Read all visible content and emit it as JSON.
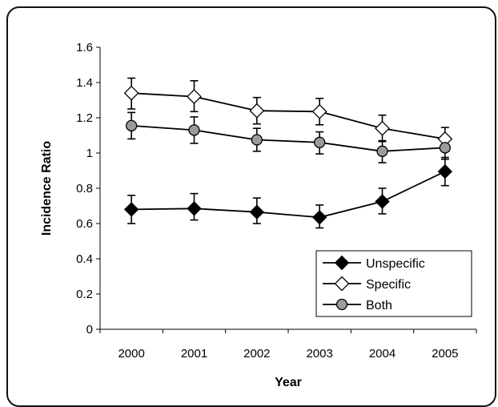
{
  "chart_data": {
    "type": "line",
    "title": "",
    "xlabel": "Year",
    "ylabel": "Incidence Ratio",
    "categories": [
      "2000",
      "2001",
      "2002",
      "2003",
      "2004",
      "2005"
    ],
    "ylim": [
      0,
      1.6
    ],
    "yticks": [
      "0",
      "0.2",
      "0.4",
      "0.6",
      "0.8",
      "1",
      "1.2",
      "1.4",
      "1.6"
    ],
    "grid": false,
    "legend_position": "bottom-right",
    "series": [
      {
        "name": "Unspecific",
        "marker": "filled-diamond",
        "color": "#000000",
        "values": [
          0.68,
          0.685,
          0.665,
          0.635,
          0.725,
          0.895
        ],
        "err_low": [
          0.6,
          0.62,
          0.6,
          0.575,
          0.655,
          0.815
        ],
        "err_high": [
          0.76,
          0.77,
          0.745,
          0.705,
          0.8,
          0.975
        ]
      },
      {
        "name": "Specific",
        "marker": "open-diamond",
        "color": "#000000",
        "values": [
          1.34,
          1.32,
          1.24,
          1.235,
          1.14,
          1.08
        ],
        "err_low": [
          1.25,
          1.235,
          1.165,
          1.16,
          1.065,
          1.01
        ],
        "err_high": [
          1.425,
          1.41,
          1.315,
          1.31,
          1.215,
          1.145
        ]
      },
      {
        "name": "Both",
        "marker": "grey-circle",
        "color": "#000000",
        "values": [
          1.155,
          1.13,
          1.075,
          1.06,
          1.01,
          1.03
        ],
        "err_low": [
          1.08,
          1.055,
          1.01,
          0.995,
          0.945,
          0.965
        ],
        "err_high": [
          1.23,
          1.205,
          1.14,
          1.12,
          1.07,
          1.095
        ]
      }
    ]
  }
}
